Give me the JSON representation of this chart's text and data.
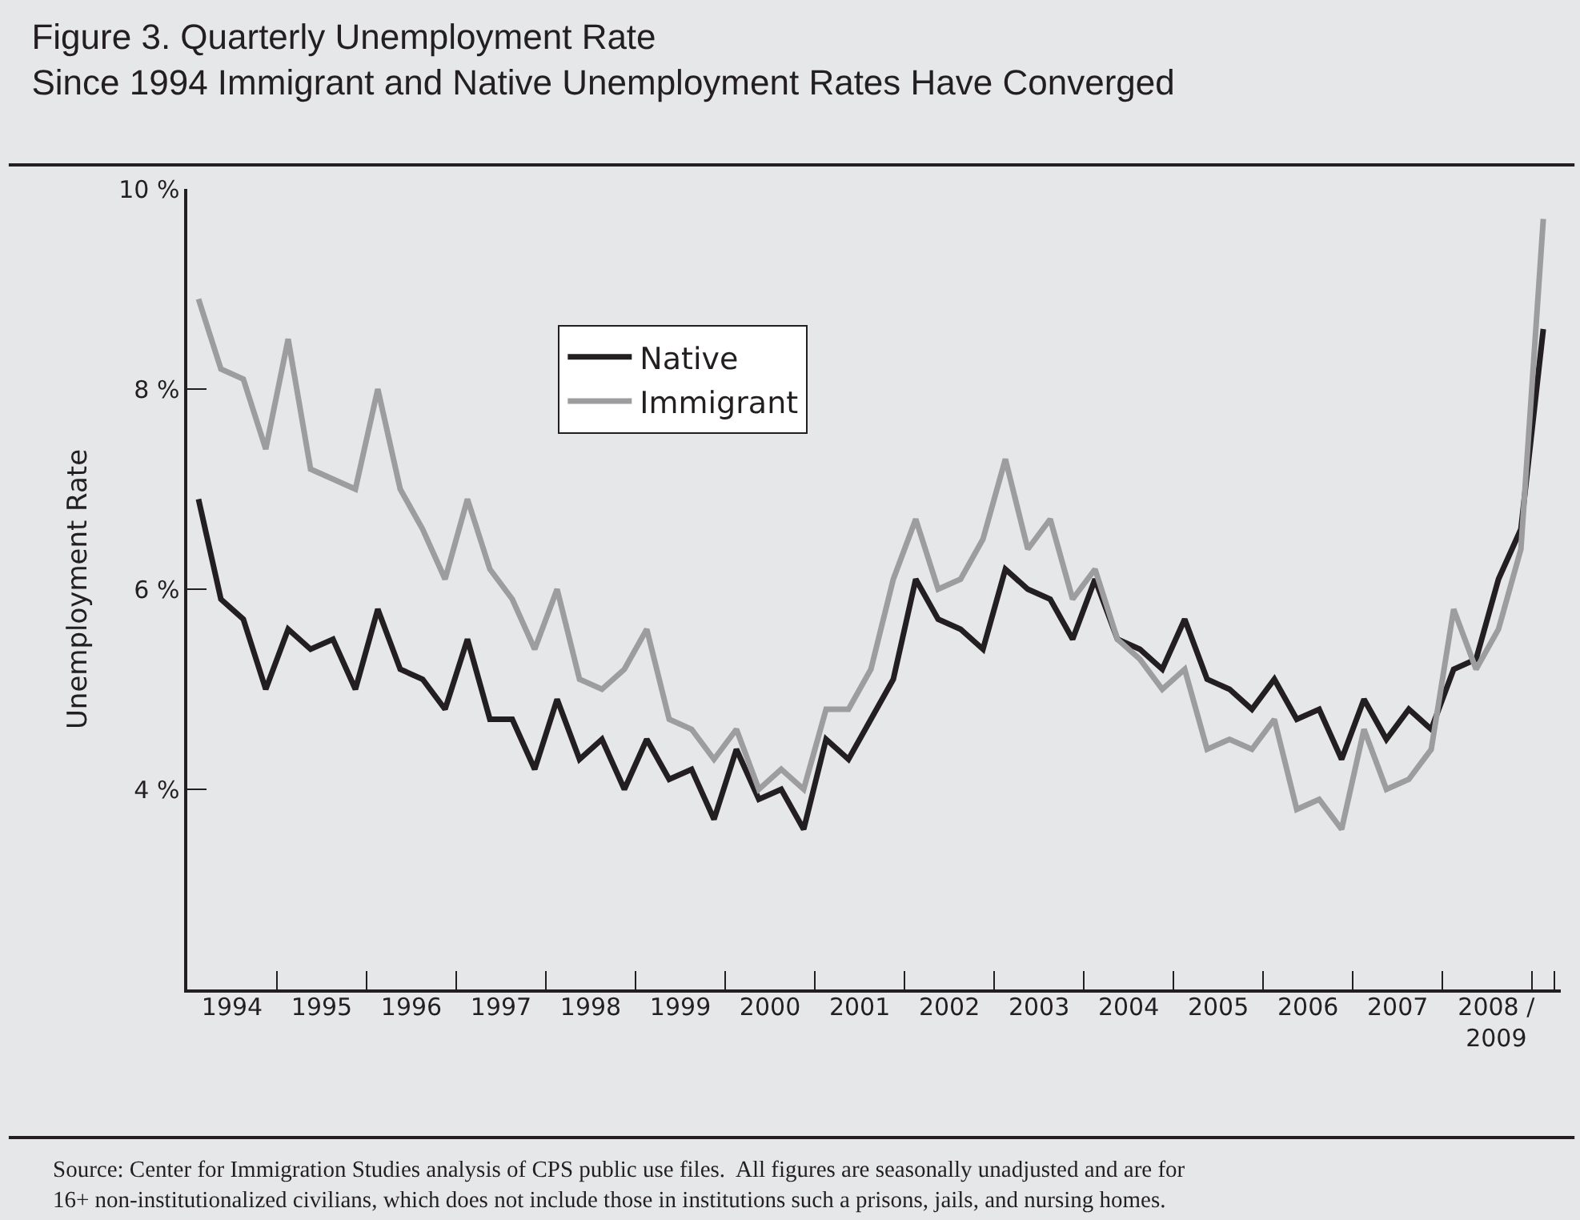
{
  "chart_data": {
    "type": "line",
    "title": "Figure 3. Quarterly Unemployment Rate",
    "subtitle": "Since 1994 Immigrant and Native Unemployment Rates Have Converged",
    "ylabel": "Unemployment Rate",
    "annotations": [
      "Source: Center for Immigration Studies analysis of CPS public use files.  All figures are seasonally unadjusted and are for\n16+ non-institutionalized civilians, which does not include those in institutions such a prisons, jails, and nursing homes."
    ],
    "x": [
      1994.125,
      1994.375,
      1994.625,
      1994.875,
      1995.125,
      1995.375,
      1995.625,
      1995.875,
      1996.125,
      1996.375,
      1996.625,
      1996.875,
      1997.125,
      1997.375,
      1997.625,
      1997.875,
      1998.125,
      1998.375,
      1998.625,
      1998.875,
      1999.125,
      1999.375,
      1999.625,
      1999.875,
      2000.125,
      2000.375,
      2000.625,
      2000.875,
      2001.125,
      2001.375,
      2001.625,
      2001.875,
      2002.125,
      2002.375,
      2002.625,
      2002.875,
      2003.125,
      2003.375,
      2003.625,
      2003.875,
      2004.125,
      2004.375,
      2004.625,
      2004.875,
      2005.125,
      2005.375,
      2005.625,
      2005.875,
      2006.125,
      2006.375,
      2006.625,
      2006.875,
      2007.125,
      2007.375,
      2007.625,
      2007.875,
      2008.125,
      2008.375,
      2008.625,
      2008.875,
      2009.125
    ],
    "series": [
      {
        "name": "Native",
        "color": "#231f20",
        "values": [
          6.9,
          5.9,
          5.7,
          5.0,
          5.6,
          5.4,
          5.5,
          5.0,
          5.8,
          5.2,
          5.1,
          4.8,
          5.5,
          4.7,
          4.7,
          4.2,
          4.9,
          4.3,
          4.5,
          4.0,
          4.5,
          4.1,
          4.2,
          3.7,
          4.4,
          3.9,
          4.0,
          3.6,
          4.5,
          4.3,
          4.7,
          5.1,
          6.1,
          5.7,
          5.6,
          5.4,
          6.2,
          6.0,
          5.9,
          5.5,
          6.1,
          5.5,
          5.4,
          5.2,
          5.7,
          5.1,
          5.0,
          4.8,
          5.1,
          4.7,
          4.8,
          4.3,
          4.9,
          4.5,
          4.8,
          4.6,
          5.2,
          5.3,
          6.1,
          6.6,
          8.6
        ]
      },
      {
        "name": "Immigrant",
        "color": "#9d9d9f",
        "values": [
          8.9,
          8.2,
          8.1,
          7.4,
          8.5,
          7.2,
          7.1,
          7.0,
          8.0,
          7.0,
          6.6,
          6.1,
          6.9,
          6.2,
          5.9,
          5.4,
          6.0,
          5.1,
          5.0,
          5.2,
          5.6,
          4.7,
          4.6,
          4.3,
          4.6,
          4.0,
          4.2,
          4.0,
          4.8,
          4.8,
          5.2,
          6.1,
          6.7,
          6.0,
          6.1,
          6.5,
          7.3,
          6.4,
          6.7,
          5.9,
          6.2,
          5.5,
          5.3,
          5.0,
          5.2,
          4.4,
          4.5,
          4.4,
          4.7,
          3.8,
          3.9,
          3.6,
          4.6,
          4.0,
          4.1,
          4.4,
          5.8,
          5.2,
          5.6,
          6.4,
          9.7
        ]
      }
    ],
    "xlim": [
      1994,
      2009.32
    ],
    "ylim": [
      2,
      10
    ],
    "xticks": [
      {
        "value": 1995,
        "label": null
      },
      {
        "value": 1996,
        "label": null
      },
      {
        "value": 1997,
        "label": null
      },
      {
        "value": 1998,
        "label": null
      },
      {
        "value": 1999,
        "label": null
      },
      {
        "value": 2000,
        "label": null
      },
      {
        "value": 2001,
        "label": null
      },
      {
        "value": 2002,
        "label": null
      },
      {
        "value": 2003,
        "label": null
      },
      {
        "value": 2004,
        "label": null
      },
      {
        "value": 2005,
        "label": null
      },
      {
        "value": 2006,
        "label": null
      },
      {
        "value": 2007,
        "label": null
      },
      {
        "value": 2008,
        "label": null
      },
      {
        "value": 2009,
        "label": null
      },
      {
        "value": 2009.25,
        "label": null
      },
      {
        "value": 1994.5,
        "label": "1994"
      },
      {
        "value": 1995.5,
        "label": "1995"
      },
      {
        "value": 1996.5,
        "label": "1996"
      },
      {
        "value": 1997.5,
        "label": "1997"
      },
      {
        "value": 1998.5,
        "label": "1998"
      },
      {
        "value": 1999.5,
        "label": "1999"
      },
      {
        "value": 2000.5,
        "label": "2000"
      },
      {
        "value": 2001.5,
        "label": "2001"
      },
      {
        "value": 2002.5,
        "label": "2002"
      },
      {
        "value": 2003.5,
        "label": "2003"
      },
      {
        "value": 2004.5,
        "label": "2004"
      },
      {
        "value": 2005.5,
        "label": "2005"
      },
      {
        "value": 2006.5,
        "label": "2006"
      },
      {
        "value": 2007.5,
        "label": "2007"
      },
      {
        "value": 2008.6,
        "label": "2008 /\n2009"
      }
    ],
    "yticks": [
      {
        "value": 4,
        "label": "4 %"
      },
      {
        "value": 6,
        "label": "6 %"
      },
      {
        "value": 8,
        "label": "8 %"
      },
      {
        "value": 10,
        "label": "10 %"
      }
    ],
    "legend": "top left",
    "grid": false,
    "marker": "none",
    "line_style": "solid"
  }
}
